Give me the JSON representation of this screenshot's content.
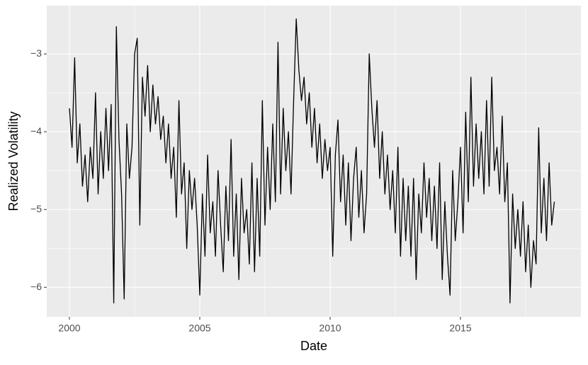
{
  "chart_data": {
    "type": "line",
    "xlabel": "Date",
    "ylabel": "Realized Volatility",
    "x": [
      2000.0,
      2000.1,
      2000.2,
      2000.3,
      2000.4,
      2000.5,
      2000.6,
      2000.7,
      2000.8,
      2000.9,
      2001.0,
      2001.1,
      2001.2,
      2001.3,
      2001.4,
      2001.5,
      2001.6,
      2001.7,
      2001.8,
      2001.9,
      2002.0,
      2002.1,
      2002.2,
      2002.3,
      2002.4,
      2002.5,
      2002.6,
      2002.7,
      2002.8,
      2002.9,
      2003.0,
      2003.1,
      2003.2,
      2003.3,
      2003.4,
      2003.5,
      2003.6,
      2003.7,
      2003.8,
      2003.9,
      2004.0,
      2004.1,
      2004.2,
      2004.3,
      2004.4,
      2004.5,
      2004.6,
      2004.7,
      2004.8,
      2004.9,
      2005.0,
      2005.1,
      2005.2,
      2005.3,
      2005.4,
      2005.5,
      2005.6,
      2005.7,
      2005.8,
      2005.9,
      2006.0,
      2006.1,
      2006.2,
      2006.3,
      2006.4,
      2006.5,
      2006.6,
      2006.7,
      2006.8,
      2006.9,
      2007.0,
      2007.1,
      2007.2,
      2007.3,
      2007.4,
      2007.5,
      2007.6,
      2007.7,
      2007.8,
      2007.9,
      2008.0,
      2008.1,
      2008.2,
      2008.3,
      2008.4,
      2008.5,
      2008.6,
      2008.7,
      2008.8,
      2008.9,
      2009.0,
      2009.1,
      2009.2,
      2009.3,
      2009.4,
      2009.5,
      2009.6,
      2009.7,
      2009.8,
      2009.9,
      2010.0,
      2010.1,
      2010.2,
      2010.3,
      2010.4,
      2010.5,
      2010.6,
      2010.7,
      2010.8,
      2010.9,
      2011.0,
      2011.1,
      2011.2,
      2011.3,
      2011.4,
      2011.5,
      2011.6,
      2011.7,
      2011.8,
      2011.9,
      2012.0,
      2012.1,
      2012.2,
      2012.3,
      2012.4,
      2012.5,
      2012.6,
      2012.7,
      2012.8,
      2012.9,
      2013.0,
      2013.1,
      2013.2,
      2013.3,
      2013.4,
      2013.5,
      2013.6,
      2013.7,
      2013.8,
      2013.9,
      2014.0,
      2014.1,
      2014.2,
      2014.3,
      2014.4,
      2014.5,
      2014.6,
      2014.7,
      2014.8,
      2014.9,
      2015.0,
      2015.1,
      2015.2,
      2015.3,
      2015.4,
      2015.5,
      2015.6,
      2015.7,
      2015.8,
      2015.9,
      2016.0,
      2016.1,
      2016.2,
      2016.3,
      2016.4,
      2016.5,
      2016.6,
      2016.7,
      2016.8,
      2016.9,
      2017.0,
      2017.1,
      2017.2,
      2017.3,
      2017.4,
      2017.5,
      2017.6,
      2017.7,
      2017.8,
      2017.9,
      2018.0,
      2018.1,
      2018.2,
      2018.3,
      2018.4,
      2018.5,
      2018.6
    ],
    "values": [
      -3.7,
      -4.2,
      -3.05,
      -4.4,
      -3.9,
      -4.7,
      -4.3,
      -4.9,
      -4.2,
      -4.6,
      -3.5,
      -4.8,
      -4.0,
      -4.6,
      -3.7,
      -4.5,
      -3.65,
      -6.2,
      -2.65,
      -4.1,
      -4.8,
      -6.15,
      -3.9,
      -4.6,
      -4.2,
      -3.0,
      -2.8,
      -5.2,
      -3.3,
      -3.8,
      -3.15,
      -4.0,
      -3.4,
      -3.9,
      -3.55,
      -4.1,
      -3.8,
      -4.4,
      -3.9,
      -4.6,
      -4.2,
      -5.1,
      -3.6,
      -4.8,
      -4.4,
      -5.5,
      -4.5,
      -5.0,
      -4.6,
      -5.2,
      -6.1,
      -4.8,
      -5.6,
      -4.3,
      -5.3,
      -4.9,
      -5.6,
      -4.5,
      -5.2,
      -5.8,
      -4.7,
      -5.4,
      -4.1,
      -5.6,
      -4.8,
      -5.9,
      -4.6,
      -5.3,
      -5.0,
      -5.7,
      -4.4,
      -5.8,
      -4.6,
      -5.6,
      -3.6,
      -5.2,
      -4.2,
      -5.0,
      -3.9,
      -4.9,
      -2.85,
      -4.8,
      -3.7,
      -4.5,
      -4.0,
      -4.8,
      -3.6,
      -2.55,
      -3.2,
      -3.6,
      -3.3,
      -3.9,
      -3.5,
      -4.2,
      -3.7,
      -4.4,
      -3.9,
      -4.6,
      -4.1,
      -4.5,
      -4.2,
      -5.6,
      -4.3,
      -3.85,
      -4.9,
      -4.3,
      -5.2,
      -4.4,
      -5.4,
      -4.6,
      -4.2,
      -5.1,
      -4.5,
      -5.3,
      -4.8,
      -3.0,
      -3.7,
      -4.2,
      -3.6,
      -4.6,
      -4.0,
      -4.8,
      -4.3,
      -5.0,
      -4.5,
      -5.3,
      -4.2,
      -5.6,
      -4.6,
      -5.4,
      -4.7,
      -5.6,
      -4.6,
      -5.9,
      -4.8,
      -5.3,
      -4.4,
      -5.1,
      -4.6,
      -5.4,
      -4.7,
      -5.5,
      -4.4,
      -5.9,
      -4.9,
      -5.6,
      -6.1,
      -4.5,
      -5.4,
      -4.9,
      -4.2,
      -5.3,
      -3.75,
      -4.9,
      -3.3,
      -4.7,
      -3.9,
      -4.6,
      -4.0,
      -4.8,
      -3.6,
      -4.7,
      -3.3,
      -4.5,
      -4.2,
      -4.8,
      -3.8,
      -4.9,
      -4.4,
      -6.2,
      -4.8,
      -5.5,
      -5.0,
      -5.6,
      -4.9,
      -5.8,
      -5.2,
      -6.0,
      -5.4,
      -5.7,
      -3.95,
      -5.3,
      -4.6,
      -5.4,
      -4.4,
      -5.2,
      -4.9
    ],
    "color": "#000000",
    "xlim": [
      1999.13,
      2019.62
    ],
    "ylim": [
      -6.38,
      -2.38
    ],
    "xticks": [
      2000,
      2005,
      2010,
      2015
    ],
    "yticks": [
      {
        "value": -3,
        "label": "−3"
      },
      {
        "value": -4,
        "label": "−4"
      },
      {
        "value": -5,
        "label": "−5"
      },
      {
        "value": -6,
        "label": "−6"
      }
    ],
    "xminor": [
      2002.5,
      2007.5,
      2012.5,
      2017.5
    ],
    "yminor": [
      -3.5,
      -4.5,
      -5.5
    ],
    "grid": true
  }
}
